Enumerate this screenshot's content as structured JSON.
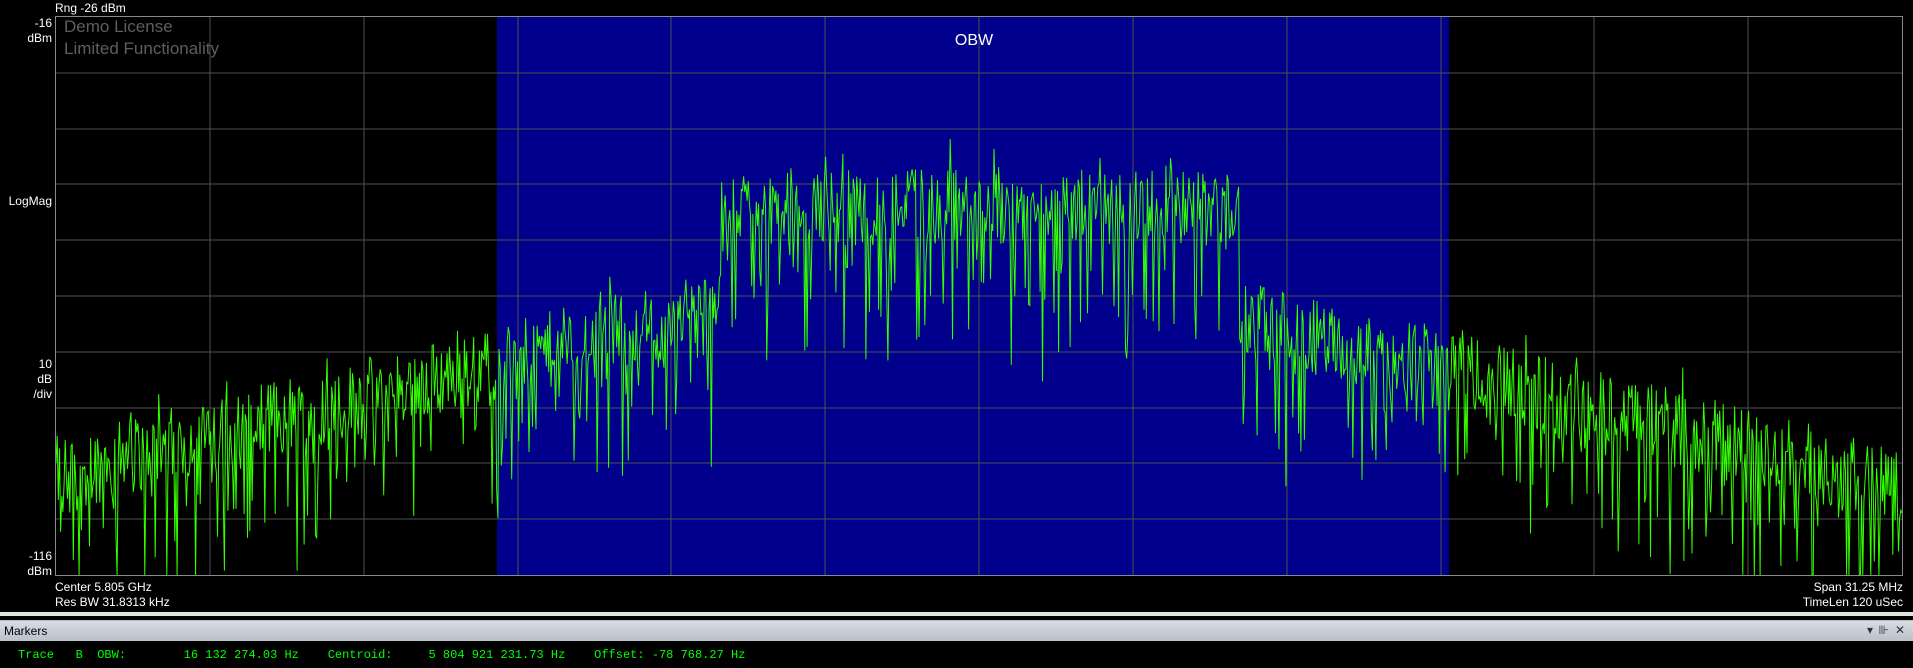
{
  "display": {
    "range_label": "Rng -26 dBm",
    "ref_top_value": "-16",
    "ref_top_unit": "dBm",
    "scale_type": "LogMag",
    "scale_div_value": "10",
    "scale_div_unit": "dB",
    "scale_div_suffix": "/div",
    "ref_bottom_value": "-116",
    "ref_bottom_unit": "dBm",
    "center_label": "Center 5.805 GHz",
    "res_bw_label": "Res BW 31.8313 kHz",
    "span_label": "Span 31.25 MHz",
    "timelen_label": "TimeLen 120 uSec",
    "watermark_line1": "Demo License",
    "watermark_line2": "Limited Functionality",
    "obw_label": "OBW",
    "colors": {
      "background": "#000000",
      "grid": "#505050",
      "obw_region": "#00008c",
      "trace": "#33ff00",
      "readout": "#00ff00"
    }
  },
  "markers_panel": {
    "title": "Markers",
    "icons": [
      "dropdown-icon",
      "pin-icon",
      "close-icon"
    ],
    "readout": {
      "trace_label": "Trace",
      "trace_id": "B",
      "obw_label": "OBW:",
      "obw_value": "16 132 274.03 Hz",
      "centroid_label": "Centroid:",
      "centroid_value": "5 804 921 231.73 Hz",
      "offset_label": "Offset:",
      "offset_value": "-78 768.27 Hz"
    }
  },
  "chart_data": {
    "type": "line",
    "x_center_hz": 5805000000,
    "x_span_hz": 31250000,
    "y_range_dbm": [
      -116,
      -16
    ],
    "y_div_db": 10,
    "grid": true,
    "obw_band_hz": [
      5796856000,
      5812986000
    ],
    "series": [
      {
        "x_mhz_offset": [
          -15.6,
          -12,
          -9,
          -6,
          -4.5,
          -4,
          -3,
          0,
          3,
          4.5,
          4.0,
          6,
          9,
          12,
          15.6
        ],
        "y_dbm": [
          -98,
          -94,
          -89,
          -82,
          -76,
          -52,
          -50,
          -49,
          -50,
          -51,
          -52,
          -80,
          -86,
          -92,
          -98
        ]
      }
    ]
  }
}
